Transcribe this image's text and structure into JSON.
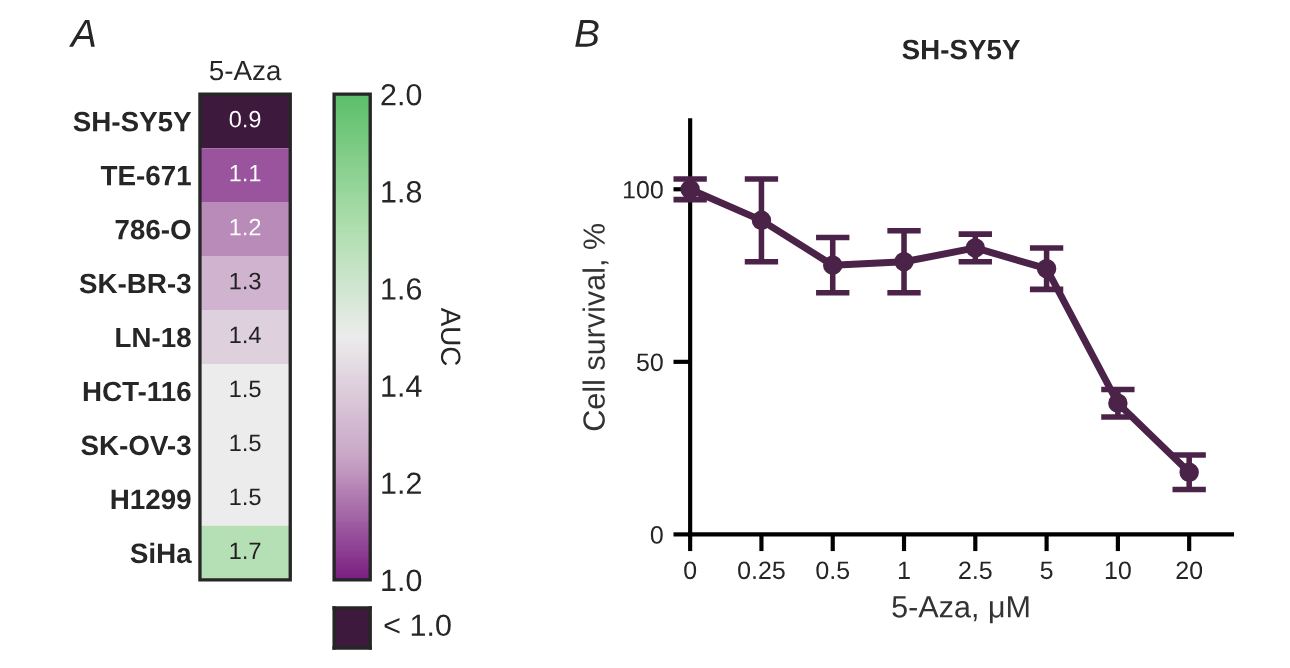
{
  "chart_data": [
    {
      "type": "heatmap",
      "categories": [
        "5-Aza"
      ],
      "y_categories": [
        "SH-SY5Y",
        "TE-671",
        "786-O",
        "SK-BR-3",
        "LN-18",
        "HCT-116",
        "SK-OV-3",
        "H1299",
        "SiHa"
      ],
      "cells": [
        [
          0.9
        ],
        [
          1.1
        ],
        [
          1.2
        ],
        [
          1.3
        ],
        [
          1.4
        ],
        [
          1.5
        ],
        [
          1.5
        ],
        [
          1.5
        ],
        [
          1.7
        ]
      ],
      "data_labels": true,
      "clabel": "AUC",
      "clim": [
        1.0,
        2.0
      ],
      "cticks": [
        {
          "value": 1.0,
          "label": "1.0"
        },
        {
          "value": 1.2,
          "label": "1.2"
        },
        {
          "value": 1.4,
          "label": "1.4"
        },
        {
          "value": 1.6,
          "label": "1.6"
        },
        {
          "value": 1.8,
          "label": "1.8"
        },
        {
          "value": 2.0,
          "label": "2.0"
        }
      ],
      "annotations": [
        "A",
        "< 1.0"
      ]
    },
    {
      "type": "line",
      "title": "SH-SY5Y",
      "xlabel": "5-Aza, μM",
      "ylabel": "Cell survival, %",
      "categories": [
        "0",
        "0.25",
        "0.5",
        "1",
        "2.5",
        "5",
        "10",
        "20"
      ],
      "series": [
        {
          "color": "#4b2348",
          "values": [
            100,
            91,
            78,
            79,
            83,
            77,
            38,
            18
          ],
          "errors": [
            3,
            12,
            8,
            9,
            4,
            6,
            4,
            5
          ]
        }
      ],
      "ylim": [
        0,
        120
      ],
      "yticks": [
        0,
        50,
        100
      ],
      "marker": "circle",
      "line_style": "solid",
      "grid": false,
      "legend": false,
      "annotations": [
        "B"
      ]
    }
  ]
}
